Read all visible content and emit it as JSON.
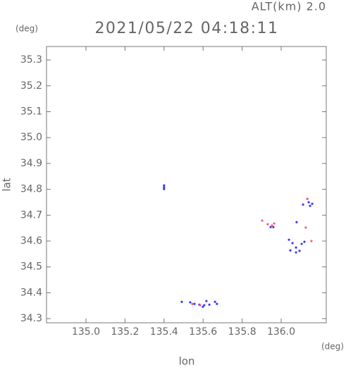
{
  "chart_data": {
    "type": "scatter",
    "title": "2021/05/22 04:18:11",
    "annotation": "ALT(km) 2.0",
    "y_unit": "(deg)",
    "x_unit": "(deg)",
    "xlabel": "lon",
    "ylabel": "lat",
    "xlim": [
      134.798,
      136.231
    ],
    "ylim": [
      34.284,
      35.352
    ],
    "xticks": [
      {
        "value": 135.0,
        "label": "135.0"
      },
      135.2,
      135.4,
      135.6,
      135.8,
      {
        "value": 136.0,
        "label": "136.0"
      }
    ],
    "yticks": [
      34.3,
      34.4,
      34.5,
      34.6,
      34.7,
      34.8,
      34.9,
      {
        "value": 35.0,
        "label": "35.0"
      },
      35.1,
      35.2,
      35.3
    ],
    "series": [
      {
        "color": "#3a3aff",
        "x": [
          135.4,
          135.4,
          135.4,
          135.491,
          135.534,
          135.556,
          135.581,
          135.606,
          135.617,
          135.632,
          135.661,
          135.671,
          135.599,
          135.946,
          135.96,
          136.134,
          136.141,
          136.159,
          136.112,
          136.148,
          136.04,
          136.058,
          136.076,
          136.094,
          136.076,
          136.105,
          136.119,
          136.047,
          136.079
        ],
        "y": [
          34.815,
          34.807,
          34.801,
          34.365,
          34.363,
          34.357,
          34.354,
          34.352,
          34.368,
          34.354,
          34.365,
          34.357,
          34.346,
          34.654,
          34.654,
          34.763,
          34.75,
          34.744,
          34.741,
          34.736,
          34.605,
          34.592,
          34.575,
          34.562,
          34.556,
          34.589,
          34.597,
          34.564,
          34.673
        ]
      },
      {
        "color": "#ff5a6a",
        "x": [
          135.545,
          135.585,
          135.903,
          135.931,
          135.953,
          135.964,
          136.134,
          136.155,
          136.126
        ],
        "y": [
          34.357,
          34.352,
          34.679,
          34.665,
          34.66,
          34.668,
          34.763,
          34.6,
          34.652
        ]
      }
    ]
  }
}
